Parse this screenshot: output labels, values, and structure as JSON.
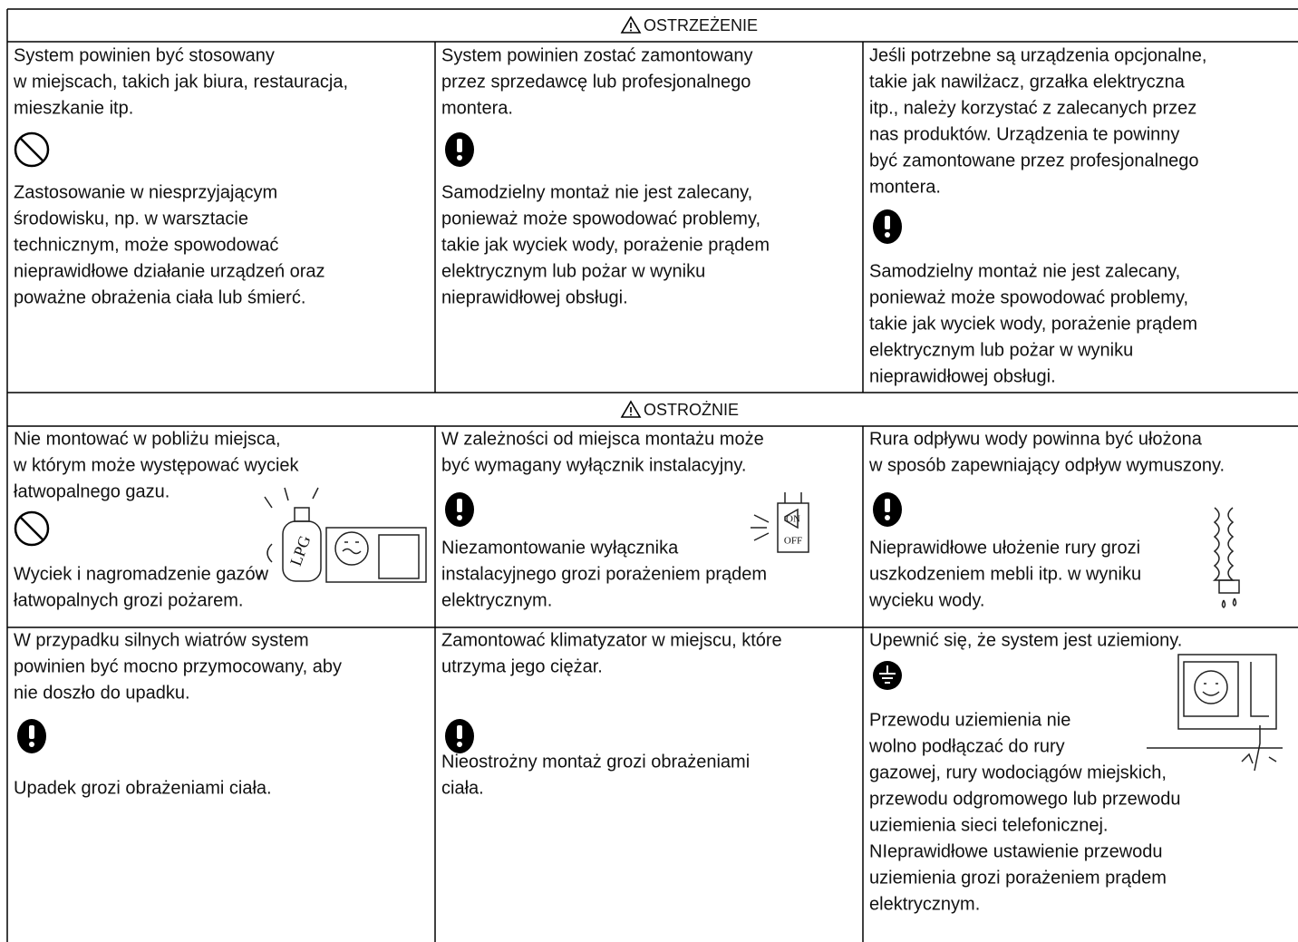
{
  "sections": [
    {
      "title": "OSTRZEŻENIE",
      "rows": [
        [
          {
            "intro": [
              "System powinien być stosowany",
              "w miejscach, takich jak biura, restauracja,",
              "mieszkanie itp."
            ],
            "detail": [
              "Zastosowanie w niesprzyjającym",
              "środowisku, np. w warsztacie",
              "technicznym, może spowodować",
              "nieprawidłowe działanie urządzeń oraz",
              "poważne obrażenia ciała lub śmierć."
            ]
          },
          {
            "intro": [
              "System powinien zostać zamontowany",
              "przez sprzedawcę lub profesjonalnego",
              "montera."
            ],
            "detail": [
              "Samodzielny montaż nie jest zalecany,",
              "ponieważ może spowodować problemy,",
              "takie jak wyciek wody, porażenie prądem",
              "elektrycznym lub pożar w wyniku",
              "nieprawidłowej obsługi."
            ]
          },
          {
            "intro": [
              "Jeśli potrzebne są urządzenia opcjonalne,",
              "takie jak nawilżacz, grzałka elektryczna",
              "itp., należy korzystać z zalecanych przez",
              "nas produktów. Urządzenia te powinny",
              "być zamontowane przez profesjonalnego",
              "montera."
            ],
            "detail": [
              "Samodzielny montaż nie jest zalecany,",
              "ponieważ może spowodować problemy,",
              "takie jak wyciek wody, porażenie prądem",
              "elektrycznym lub pożar w wyniku",
              "nieprawidłowej obsługi."
            ]
          }
        ]
      ]
    },
    {
      "title": "OSTROŻNIE",
      "rows": [
        [
          {
            "intro": [
              "Nie montować w pobliżu miejsca,",
              "w którym może występować wyciek",
              "łatwopalnego gazu."
            ],
            "detail": [
              "Wyciek i nagromadzenie gazów",
              "łatwopalnych grozi pożarem."
            ],
            "labels": [
              "LPG"
            ]
          },
          {
            "intro": [
              "W zależności od miejsca montażu może",
              "być wymagany wyłącznik instalacyjny."
            ],
            "detail": [
              "Niezamontowanie wyłącznika",
              "instalacyjnego grozi porażeniem prądem",
              "elektrycznym."
            ],
            "labels": [
              "ON",
              "OFF"
            ]
          },
          {
            "intro": [
              "Rura odpływu wody powinna być ułożona",
              "w sposób zapewniający odpływ wymuszony."
            ],
            "detail": [
              "Nieprawidłowe ułożenie rury grozi",
              "uszkodzeniem mebli itp. w wyniku",
              "wycieku wody."
            ]
          }
        ],
        [
          {
            "intro": [
              "W przypadku silnych wiatrów system",
              "powinien być mocno przymocowany, aby",
              "nie doszło do upadku."
            ],
            "detail": [
              "Upadek grozi obrażeniami ciała."
            ]
          },
          {
            "intro": [
              "Zamontować klimatyzator w miejscu, które",
              "utrzyma jego ciężar."
            ],
            "detail": [
              "Nieostrożny montaż grozi obrażeniami",
              "ciała."
            ]
          },
          {
            "intro": [
              "Upewnić się, że system jest uziemiony."
            ],
            "detail": [
              "Przewodu uziemienia nie",
              "wolno podłączać do rury",
              "gazowej, rury wodociągów miejskich,",
              "przewodu odgromowego lub przewodu",
              "uziemienia sieci telefonicznej.",
              "NIeprawidłowe ustawienie przewodu",
              "uziemienia grozi porażeniem prądem",
              "elektrycznym."
            ]
          }
        ]
      ]
    }
  ]
}
